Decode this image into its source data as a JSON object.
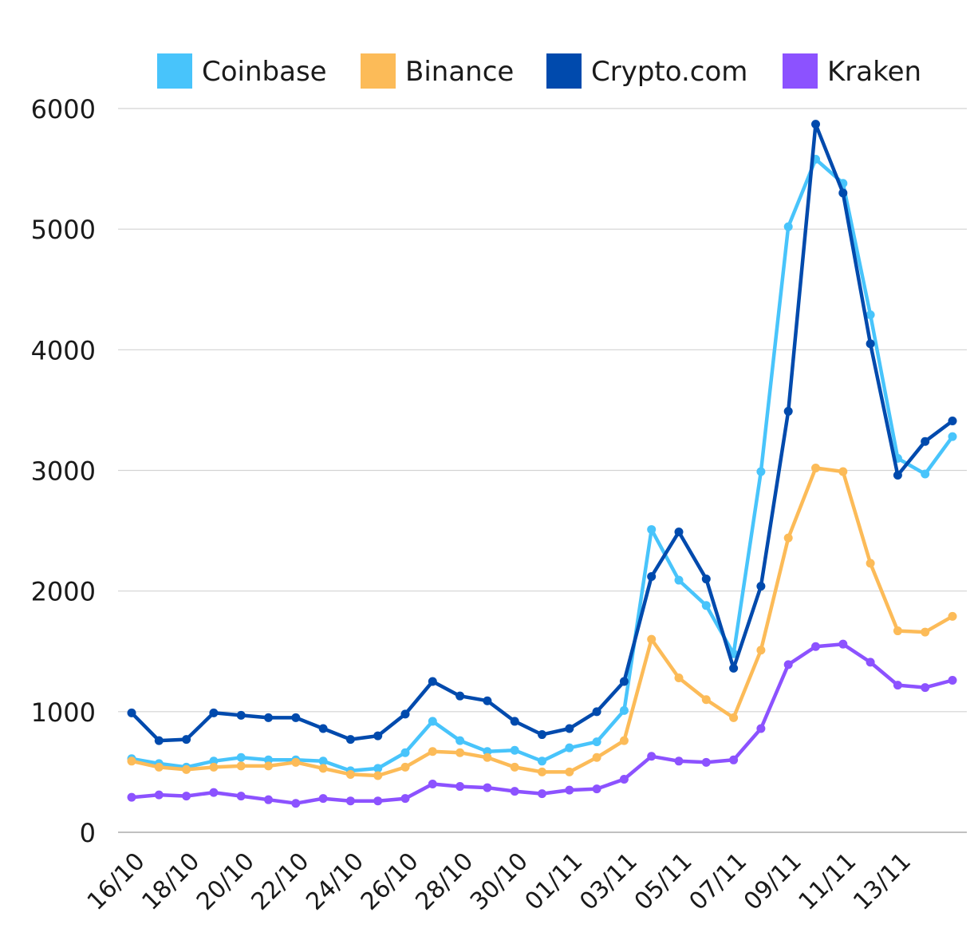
{
  "chart_data": {
    "type": "line",
    "title": "",
    "xlabel": "",
    "ylabel": "",
    "ylim": [
      0,
      6000
    ],
    "yticks": [
      "0",
      "1000",
      "2000",
      "3000",
      "4000",
      "5000",
      "6000"
    ],
    "grid": true,
    "legend": "top",
    "x": [
      "16/10",
      "17/10",
      "18/10",
      "19/10",
      "20/10",
      "21/10",
      "22/10",
      "23/10",
      "24/10",
      "25/10",
      "26/10",
      "27/10",
      "28/10",
      "29/10",
      "30/10",
      "31/10",
      "01/11",
      "02/11",
      "03/11",
      "04/11",
      "05/11",
      "06/11",
      "07/11",
      "08/11",
      "09/11",
      "10/11",
      "11/11",
      "12/11",
      "13/11",
      "14/11",
      "15/11"
    ],
    "xtick_labels": [
      "16/10",
      "18/10",
      "20/10",
      "22/10",
      "24/10",
      "26/10",
      "28/10",
      "30/10",
      "01/11",
      "03/11",
      "05/11",
      "07/11",
      "09/11",
      "11/11",
      "13/11"
    ],
    "series": [
      {
        "name": "Coinbase",
        "color": "#48C4FB",
        "values": [
          610,
          570,
          540,
          590,
          620,
          600,
          600,
          590,
          510,
          530,
          660,
          920,
          760,
          670,
          680,
          590,
          700,
          750,
          1010,
          2510,
          2090,
          1880,
          1480,
          2990,
          5020,
          5580,
          5380,
          4290,
          3100,
          2970,
          3280
        ]
      },
      {
        "name": "Binance",
        "color": "#FCBB58",
        "values": [
          590,
          540,
          520,
          540,
          550,
          550,
          580,
          530,
          480,
          470,
          540,
          670,
          660,
          620,
          540,
          500,
          500,
          620,
          760,
          1600,
          1280,
          1100,
          950,
          1510,
          2440,
          3020,
          2990,
          2230,
          1670,
          1660,
          1790
        ]
      },
      {
        "name": "Crypto.com",
        "color": "#004AAD",
        "values": [
          990,
          760,
          770,
          990,
          970,
          950,
          950,
          860,
          770,
          800,
          980,
          1250,
          1130,
          1090,
          920,
          810,
          860,
          1000,
          1250,
          2120,
          2490,
          2100,
          1360,
          2040,
          3490,
          5870,
          5300,
          4050,
          2960,
          3240,
          3410
        ]
      },
      {
        "name": "Kraken",
        "color": "#8C52FF",
        "values": [
          290,
          310,
          300,
          330,
          300,
          270,
          240,
          280,
          260,
          260,
          280,
          400,
          380,
          370,
          340,
          320,
          350,
          360,
          440,
          630,
          590,
          580,
          600,
          860,
          1390,
          1540,
          1560,
          1410,
          1220,
          1200,
          1260
        ]
      }
    ]
  }
}
